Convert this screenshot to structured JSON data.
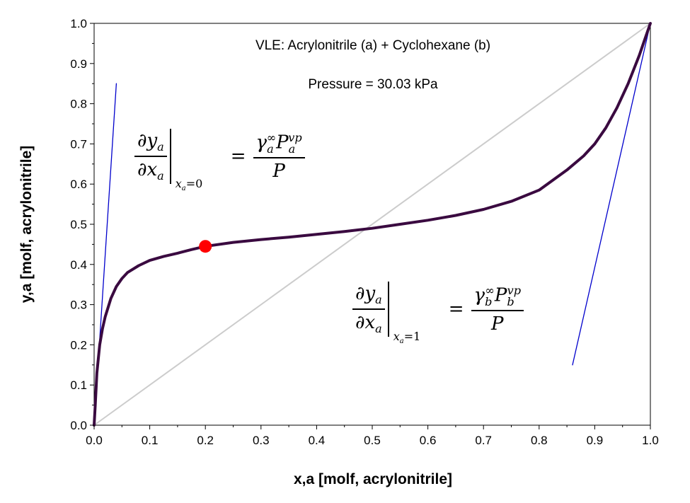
{
  "chart_data": {
    "type": "line",
    "title": "VLE: Acrylonitrile (a) + Cyclohexane (b)",
    "subtitle": "Pressure = 30.03 kPa",
    "xlabel": "x,a [molf, acrylonitrile]",
    "ylabel": "y,a [molf, acrylonitrile]",
    "xlim": [
      0,
      1
    ],
    "ylim": [
      0,
      1
    ],
    "xticks": [
      "0.0",
      "0.1",
      "0.2",
      "0.3",
      "0.4",
      "0.5",
      "0.6",
      "0.7",
      "0.8",
      "0.9",
      "1.0"
    ],
    "yticks": [
      "0.0",
      "0.1",
      "0.2",
      "0.3",
      "0.4",
      "0.5",
      "0.6",
      "0.7",
      "0.8",
      "0.9",
      "1.0"
    ],
    "grid": false,
    "series": [
      {
        "role": "vle-curve",
        "color": "#3a0a40",
        "x": [
          0,
          0.002,
          0.005,
          0.01,
          0.015,
          0.02,
          0.03,
          0.04,
          0.05,
          0.06,
          0.08,
          0.1,
          0.125,
          0.15,
          0.175,
          0.2,
          0.25,
          0.3,
          0.35,
          0.4,
          0.45,
          0.5,
          0.55,
          0.6,
          0.65,
          0.7,
          0.75,
          0.8,
          0.85,
          0.88,
          0.9,
          0.92,
          0.94,
          0.96,
          0.98,
          0.99,
          1.0
        ],
        "y": [
          0,
          0.05,
          0.13,
          0.2,
          0.24,
          0.27,
          0.315,
          0.345,
          0.365,
          0.38,
          0.397,
          0.41,
          0.42,
          0.428,
          0.437,
          0.445,
          0.455,
          0.462,
          0.468,
          0.475,
          0.482,
          0.49,
          0.5,
          0.51,
          0.522,
          0.537,
          0.557,
          0.585,
          0.635,
          0.67,
          0.7,
          0.74,
          0.79,
          0.85,
          0.92,
          0.96,
          1.0
        ]
      },
      {
        "role": "diagonal",
        "color": "#cccccc",
        "x": [
          0,
          1
        ],
        "y": [
          0,
          1
        ]
      },
      {
        "role": "tangent-at-xa-0",
        "color": "#0000cc",
        "x": [
          0,
          0.04
        ],
        "y": [
          0,
          0.85
        ]
      },
      {
        "role": "tangent-at-xa-1",
        "color": "#0000cc",
        "x": [
          0.86,
          1.0
        ],
        "y": [
          0.15,
          1.0
        ]
      }
    ],
    "marker": {
      "x": 0.2,
      "y": 0.445,
      "color": "#ff0000"
    }
  },
  "equations": {
    "eq0": {
      "num_base": "∂y",
      "num_sub": "a",
      "den_base": "∂x",
      "den_sub": "a",
      "eval": "x",
      "eval_sub": "a",
      "eval_val": "=0",
      "rhs_num_gamma": "γ",
      "rhs_num_gamma_sub": "a",
      "rhs_num_gamma_sup": "∞",
      "rhs_num_p": "P",
      "rhs_num_p_sub": "a",
      "rhs_num_p_sup": "vp",
      "rhs_den": "P"
    },
    "eq1": {
      "num_base": "∂y",
      "num_sub": "a",
      "den_base": "∂x",
      "den_sub": "a",
      "eval": "x",
      "eval_sub": "a",
      "eval_val": "=1",
      "rhs_num_gamma": "γ",
      "rhs_num_gamma_sub": "b",
      "rhs_num_gamma_sup": "∞",
      "rhs_num_p": "P",
      "rhs_num_p_sub": "b",
      "rhs_num_p_sup": "vp",
      "rhs_den": "P"
    }
  }
}
